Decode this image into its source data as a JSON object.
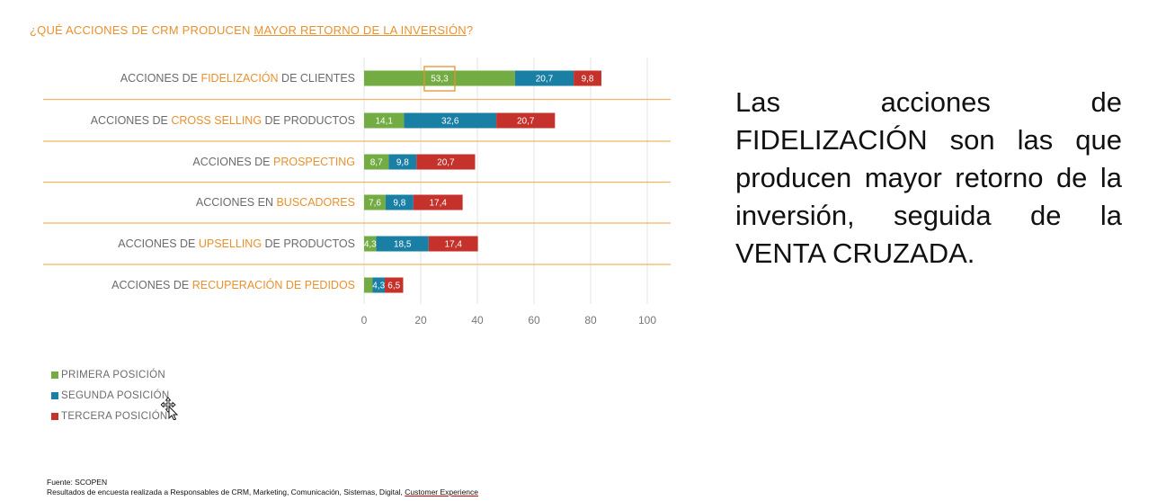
{
  "title": {
    "prefix": "¿QUÉ ACCIONES DE CRM PRODUCEN ",
    "underlined": "MAYOR RETORNO DE LA INVERSIÓN",
    "suffix": "?"
  },
  "colors": {
    "accent": "#e8912e",
    "primera": "#72ac43",
    "segunda": "#1a7fa5",
    "tercera": "#c4322b",
    "divider": "#f2b466",
    "highlight_box": "#e8912e"
  },
  "chart_data": {
    "type": "bar",
    "orientation": "horizontal",
    "stacked": true,
    "categories": [
      {
        "pre": "ACCIONES DE ",
        "hl": "FIDELIZACIÓN",
        "post": " DE CLIENTES"
      },
      {
        "pre": "ACCIONES DE ",
        "hl": "CROSS SELLING",
        "post": " DE PRODUCTOS"
      },
      {
        "pre": "ACCIONES DE ",
        "hl": "PROSPECTING",
        "post": ""
      },
      {
        "pre": "ACCIONES EN ",
        "hl": "BUSCADORES",
        "post": ""
      },
      {
        "pre": "ACCIONES DE ",
        "hl": "UPSELLING",
        "post": " DE PRODUCTOS"
      },
      {
        "pre": "ACCIONES DE ",
        "hl": "RECUPERACIÓN DE PEDIDOS",
        "post": ""
      }
    ],
    "series": [
      {
        "name": "PRIMERA POSICIÓN",
        "color": "#72ac43",
        "values": [
          53.3,
          14.1,
          8.7,
          7.6,
          4.3,
          3.0
        ]
      },
      {
        "name": "SEGUNDA POSICIÓN",
        "color": "#1a7fa5",
        "values": [
          20.7,
          32.6,
          9.8,
          9.8,
          18.5,
          4.3
        ]
      },
      {
        "name": "TERCERA POSICIÓN",
        "color": "#c4322b",
        "values": [
          9.8,
          20.7,
          20.7,
          17.4,
          17.4,
          6.5
        ]
      }
    ],
    "data_labels": [
      [
        "53,3",
        "20,7",
        "9,8"
      ],
      [
        "14,1",
        "32,6",
        "20,7"
      ],
      [
        "8,7",
        "9,8",
        "20,7"
      ],
      [
        "7,6",
        "9,8",
        "17,4"
      ],
      [
        "4,3",
        "18,5",
        "17,4"
      ],
      [
        "",
        "4,3",
        "6,5"
      ]
    ],
    "xlim": [
      0,
      100
    ],
    "xticks": [
      0,
      20,
      40,
      60,
      80,
      100
    ],
    "grid": "vertical",
    "highlight": {
      "category_index": 0,
      "series_index": 0
    },
    "legend_position": "bottom-left"
  },
  "cursor": "move-cursor-icon",
  "source": {
    "line1": "Fuente: SCOPEN",
    "line2_prefix": "Resultados de encuesta realizada a Responsables de CRM, Marketing, Comunicación, Sistemas, Digital, ",
    "line2_underlined": "Customer Experience"
  },
  "summary": "Las acciones de FIDELIZACIÓN son las que producen mayor retorno de la inversión, seguida de la VENTA CRUZADA."
}
